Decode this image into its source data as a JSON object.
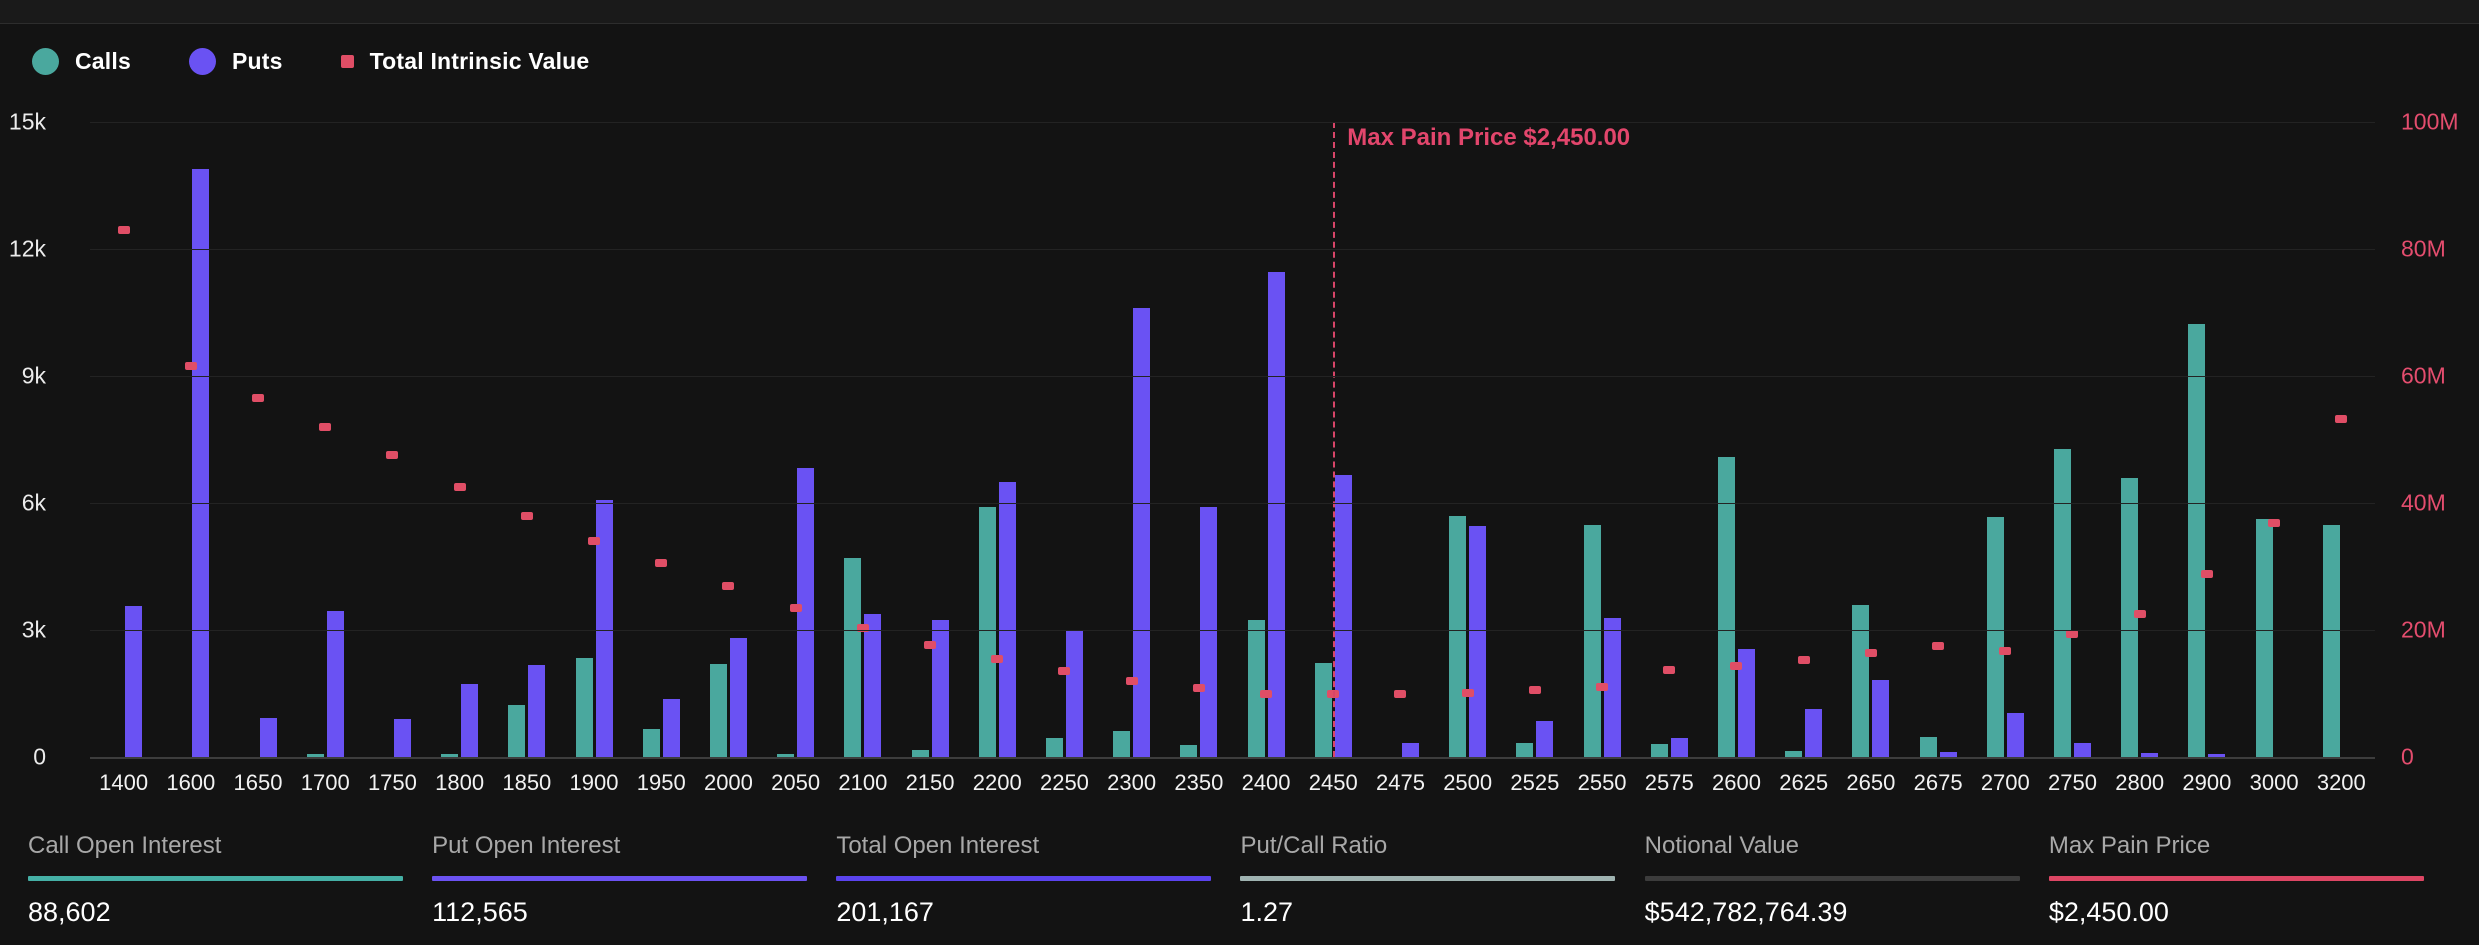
{
  "legend": {
    "items": [
      {
        "label": "Calls",
        "color": "#4aa89e",
        "marker": "circle"
      },
      {
        "label": "Puts",
        "color": "#6a52f3",
        "marker": "circle"
      },
      {
        "label": "Total Intrinsic Value",
        "color": "#e04e66",
        "marker": "square"
      }
    ]
  },
  "chart_data": {
    "type": "bar",
    "title": "",
    "grid": true,
    "legend_position": "top-left",
    "categories": [
      "1400",
      "1600",
      "1650",
      "1700",
      "1750",
      "1800",
      "1850",
      "1900",
      "1950",
      "2000",
      "2050",
      "2100",
      "2150",
      "2200",
      "2250",
      "2300",
      "2350",
      "2400",
      "2450",
      "2475",
      "2500",
      "2525",
      "2550",
      "2575",
      "2600",
      "2625",
      "2650",
      "2675",
      "2700",
      "2750",
      "2800",
      "2900",
      "3000",
      "3200"
    ],
    "series": [
      {
        "name": "Calls",
        "type": "bar",
        "axis": "left",
        "color": "#4aa89e",
        "values": [
          0,
          0,
          0,
          60,
          0,
          70,
          1240,
          2340,
          670,
          2200,
          60,
          4710,
          170,
          5900,
          460,
          620,
          280,
          3230,
          2230,
          0,
          5700,
          320,
          5470,
          300,
          7080,
          150,
          3590,
          470,
          5660,
          7270,
          6590,
          10220,
          5630,
          5480
        ]
      },
      {
        "name": "Puts",
        "type": "bar",
        "axis": "left",
        "color": "#6a52f3",
        "values": [
          3560,
          13900,
          930,
          3460,
          900,
          1720,
          2170,
          6070,
          1380,
          2820,
          6820,
          3390,
          3240,
          6490,
          3000,
          10600,
          5910,
          11460,
          6650,
          340,
          5460,
          840,
          3290,
          440,
          2550,
          1130,
          1810,
          120,
          1030,
          340,
          90,
          80,
          0,
          0
        ]
      },
      {
        "name": "Total Intrinsic Value",
        "type": "scatter",
        "axis": "right",
        "color": "#e04e66",
        "values_millions": [
          83,
          61.5,
          56.5,
          52,
          47.5,
          42.5,
          38,
          34,
          30.5,
          27,
          23.5,
          20.3,
          17.7,
          15.5,
          13.6,
          11.9,
          10.8,
          10,
          9.9,
          10,
          10.1,
          10.5,
          11.1,
          13.7,
          14.4,
          15.2,
          16.4,
          17.5,
          16.7,
          19.3,
          22.5,
          28.9,
          36.9,
          53.2
        ]
      }
    ],
    "left_axis": {
      "ticks": [
        "15k",
        "12k",
        "9k",
        "6k",
        "3k",
        "0"
      ],
      "max": 15000,
      "min": 0
    },
    "right_axis": {
      "ticks": [
        "100M",
        "80M",
        "60M",
        "40M",
        "20M",
        "0"
      ],
      "max_millions": 100,
      "min_millions": 0
    },
    "annotation": {
      "label": "Max Pain Price $2,450.00",
      "strike": "2450",
      "color": "#e2466c"
    }
  },
  "stats": {
    "items": [
      {
        "label": "Call Open Interest",
        "value": "88,602",
        "color": "#45b0a6"
      },
      {
        "label": "Put Open Interest",
        "value": "112,565",
        "color": "#6b52f2"
      },
      {
        "label": "Total Open Interest",
        "value": "201,167",
        "color": "#5a43ee"
      },
      {
        "label": "Put/Call Ratio",
        "value": "1.27",
        "color": "#9fb3b1"
      },
      {
        "label": "Notional Value",
        "value": "$542,782,764.39",
        "color": "#3c3c3c"
      },
      {
        "label": "Max Pain Price",
        "value": "$2,450.00",
        "color": "#dd4664"
      }
    ]
  }
}
